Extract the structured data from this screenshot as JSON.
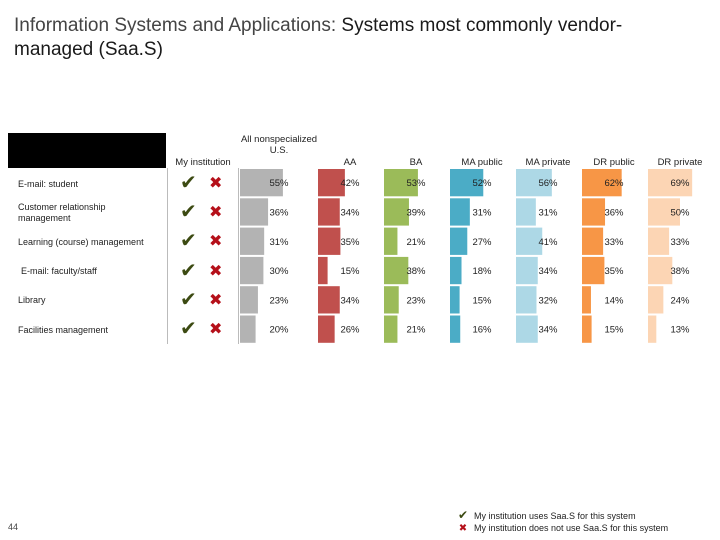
{
  "title": {
    "lead": "Information Systems and Applications: ",
    "main": "Systems most commonly vendor-managed (Saa.S)"
  },
  "page_number": "44",
  "chart_data": {
    "type": "table",
    "columns": [
      "My institution",
      "All nonspecialized U.S.",
      "AA",
      "BA",
      "MA public",
      "MA private",
      "DR public",
      "DR private"
    ],
    "series_colors": {
      "All nonspecialized U.S.": "#b3b3b3",
      "AA": "#c0504d",
      "BA": "#9bbb59",
      "MA public": "#4bacc6",
      "MA private": "#add8e6",
      "DR public": "#f79646",
      "DR private": "#fcd5b4"
    },
    "rows": [
      {
        "label": "E-mail: student",
        "values": [
          "55%",
          "42%",
          "53%",
          "52%",
          "56%",
          "62%",
          "69%"
        ]
      },
      {
        "label": "Customer relationship management",
        "values": [
          "36%",
          "34%",
          "39%",
          "31%",
          "31%",
          "36%",
          "50%"
        ]
      },
      {
        "label": "Learning (course) management",
        "values": [
          "31%",
          "35%",
          "21%",
          "27%",
          "41%",
          "33%",
          "33%"
        ]
      },
      {
        "label": "E-mail: faculty/staff",
        "values": [
          "30%",
          "15%",
          "38%",
          "18%",
          "34%",
          "35%",
          "38%"
        ]
      },
      {
        "label": "Library",
        "values": [
          "23%",
          "34%",
          "23%",
          "15%",
          "32%",
          "14%",
          "24%"
        ]
      },
      {
        "label": "Facilities management",
        "values": [
          "20%",
          "26%",
          "21%",
          "16%",
          "34%",
          "15%",
          "13%"
        ]
      }
    ],
    "my_institution": [
      {
        "uses": "✔",
        "does_not_use": "✖"
      },
      {
        "uses": "✔",
        "does_not_use": "✖"
      },
      {
        "uses": "✔",
        "does_not_use": "✖"
      },
      {
        "uses": "✔",
        "does_not_use": "✖"
      },
      {
        "uses": "✔",
        "does_not_use": "✖"
      },
      {
        "uses": "✔",
        "does_not_use": "✖"
      }
    ]
  },
  "legend": [
    {
      "symbol": "✔",
      "text": "My institution uses Saa.S for this system"
    },
    {
      "symbol": "✖",
      "text": "My institution does not use Saa.S for this system"
    }
  ]
}
